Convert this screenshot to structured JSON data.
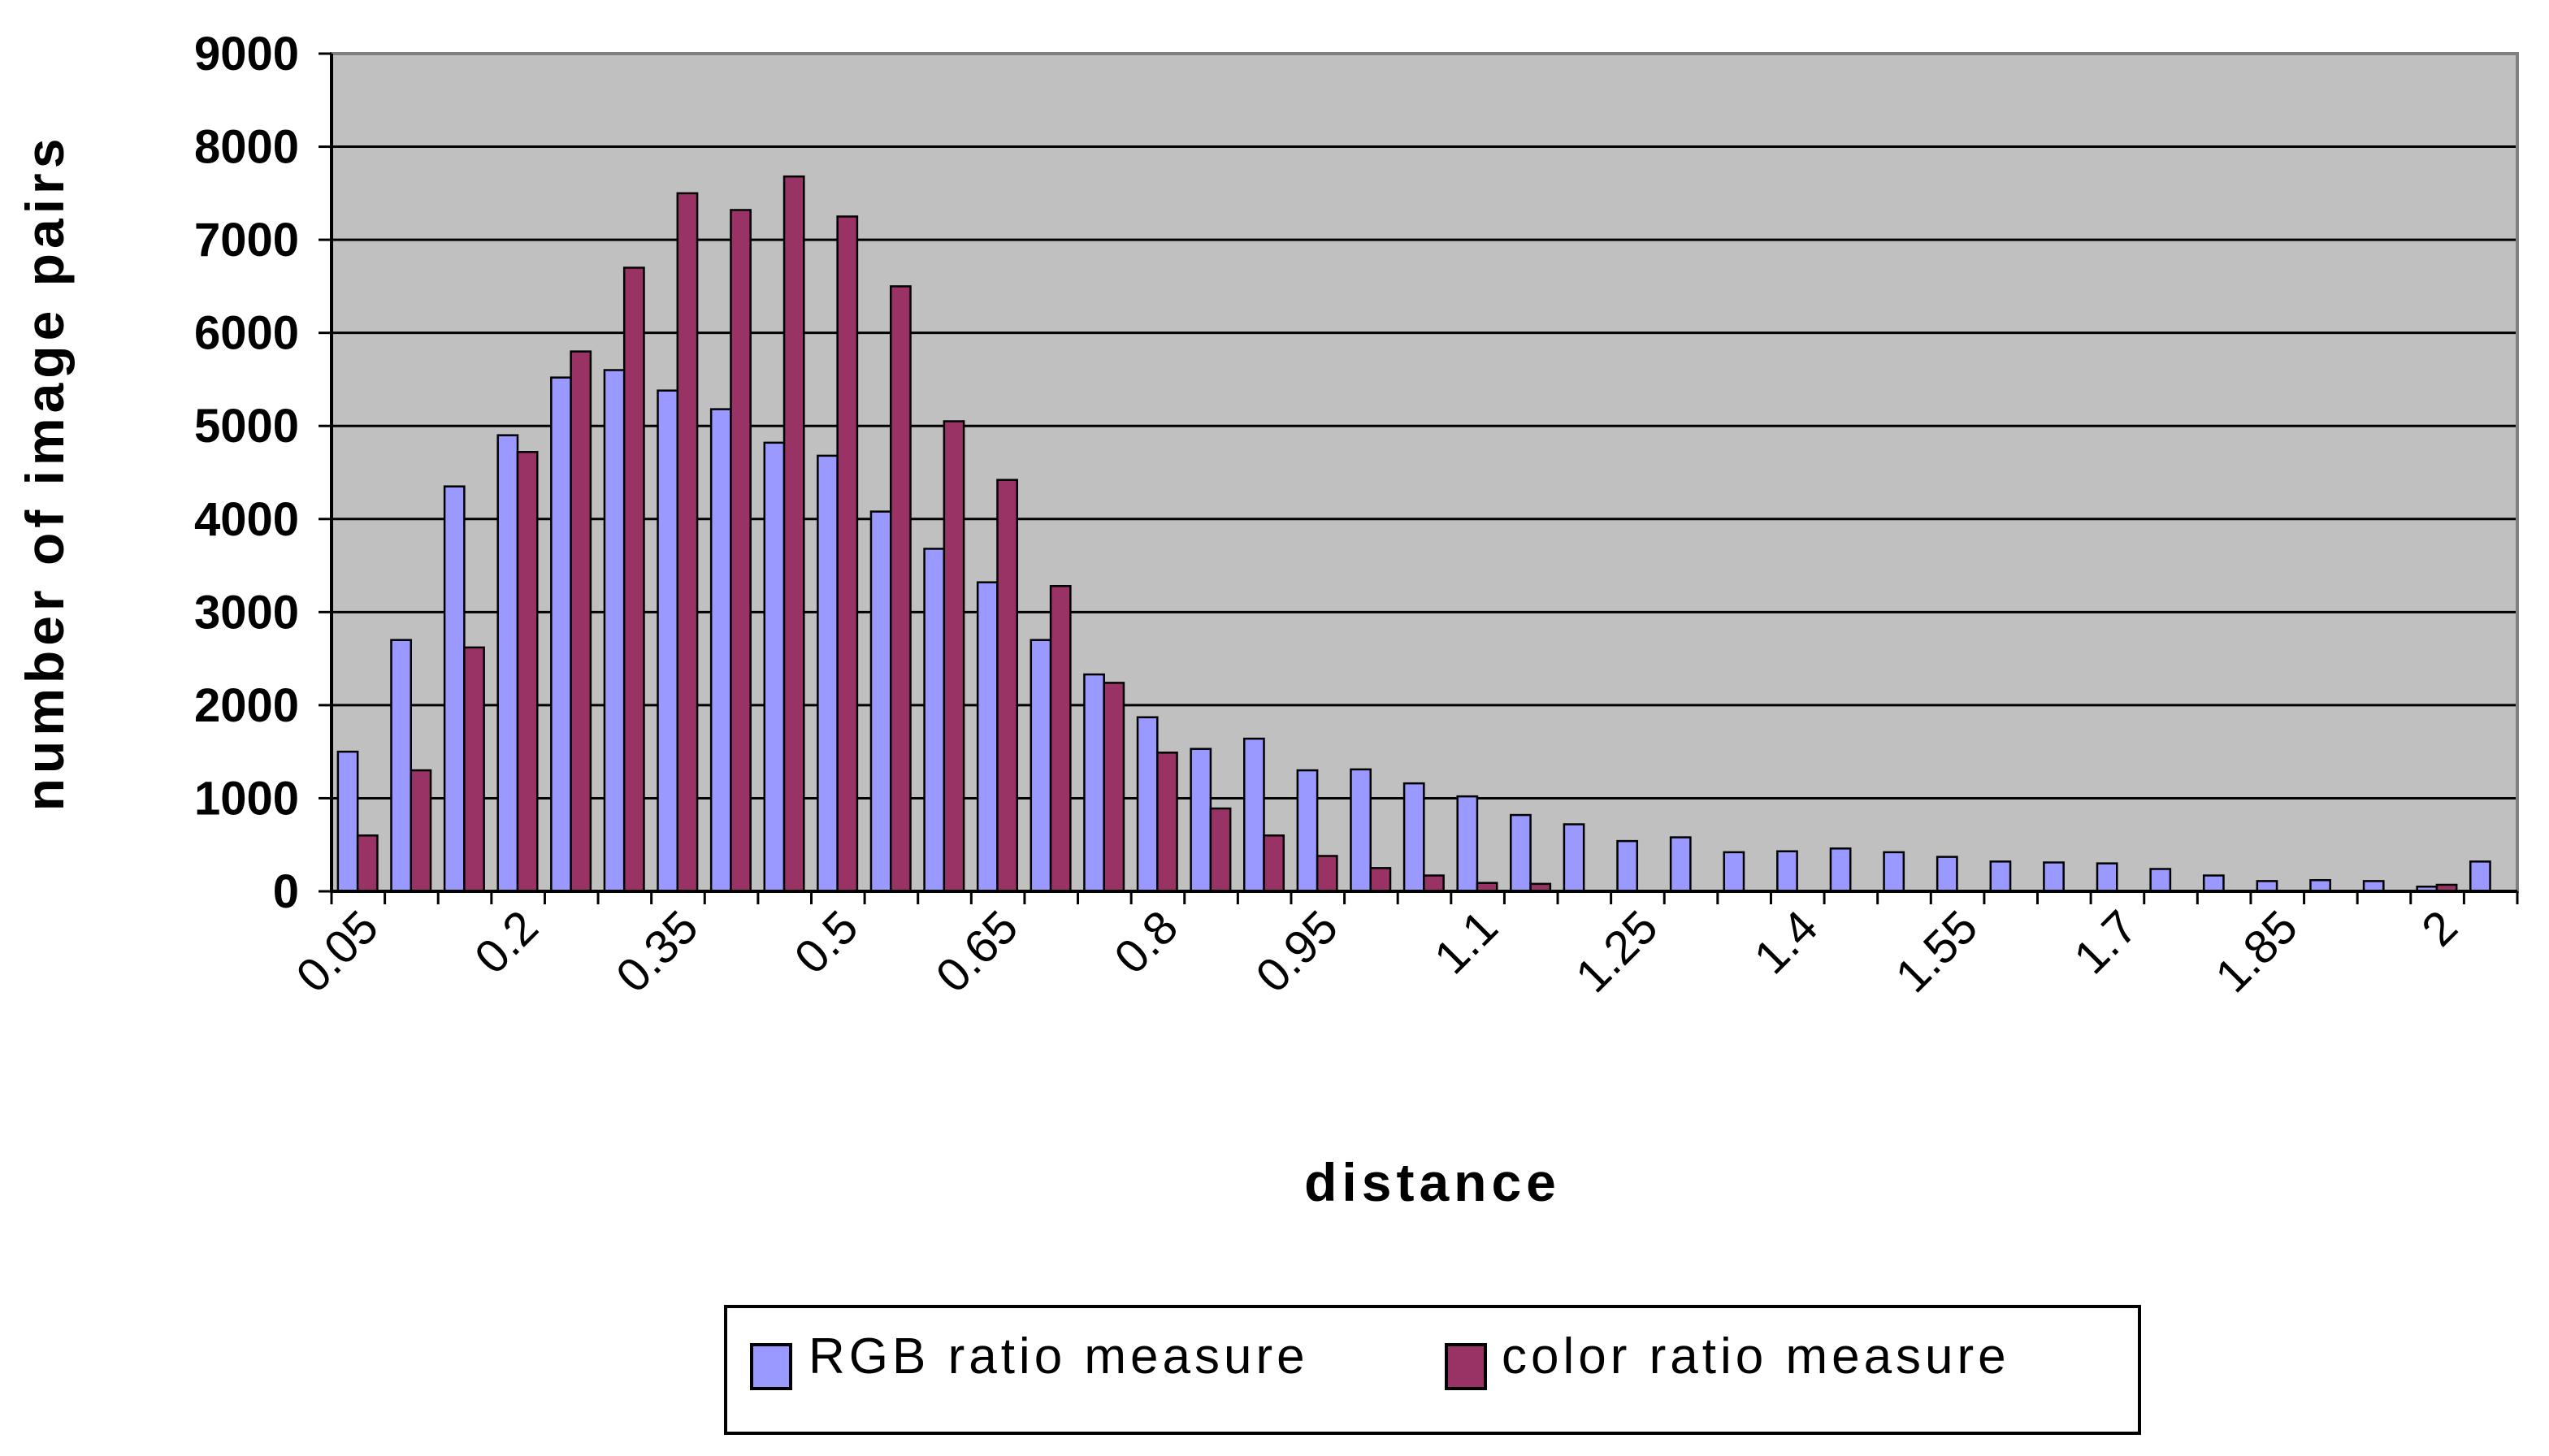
{
  "chart_data": {
    "type": "bar",
    "xlabel": "distance",
    "ylabel": "number of image pairs",
    "ylim": [
      0,
      9000
    ],
    "y_ticks": [
      "0",
      "1000",
      "2000",
      "3000",
      "4000",
      "5000",
      "6000",
      "7000",
      "8000",
      "9000"
    ],
    "categories": [
      "0.05",
      "0.1",
      "0.15",
      "0.2",
      "0.25",
      "0.3",
      "0.35",
      "0.4",
      "0.45",
      "0.5",
      "0.55",
      "0.6",
      "0.65",
      "0.7",
      "0.75",
      "0.8",
      "0.85",
      "0.9",
      "0.95",
      "1",
      "1.05",
      "1.1",
      "1.15",
      "1.2",
      "1.25",
      "1.3",
      "1.35",
      "1.4",
      "1.45",
      "1.5",
      "1.55",
      "1.6",
      "1.65",
      "1.7",
      "1.75",
      "1.8",
      "1.85",
      "1.9",
      "1.95",
      "2",
      "2.05"
    ],
    "x_tick_labels": [
      "0.05",
      "0.2",
      "0.35",
      "0.5",
      "0.65",
      "0.8",
      "0.95",
      "1.1",
      "1.25",
      "1.4",
      "1.55",
      "1.7",
      "1.85",
      "2"
    ],
    "grid": true,
    "plot_background": "#c0c0c0",
    "legend_position": "bottom",
    "series": [
      {
        "name": "RGB ratio measure",
        "color": "#9999ff",
        "values": [
          1500,
          2700,
          4350,
          4900,
          5520,
          5600,
          5380,
          5180,
          4820,
          4680,
          4080,
          3680,
          3320,
          2700,
          2330,
          1870,
          1530,
          1640,
          1300,
          1310,
          1160,
          1020,
          820,
          720,
          540,
          580,
          420,
          430,
          460,
          420,
          370,
          320,
          310,
          300,
          240,
          170,
          110,
          120,
          110,
          50,
          320
        ]
      },
      {
        "name": "color ratio measure",
        "color": "#993366",
        "values": [
          600,
          1300,
          2620,
          4720,
          5800,
          6700,
          7500,
          7320,
          7680,
          7250,
          6500,
          5050,
          4420,
          3280,
          2240,
          1490,
          890,
          600,
          380,
          250,
          170,
          90,
          80,
          0,
          0,
          0,
          0,
          0,
          0,
          0,
          0,
          0,
          0,
          0,
          0,
          0,
          0,
          0,
          0,
          70,
          0
        ]
      }
    ]
  }
}
